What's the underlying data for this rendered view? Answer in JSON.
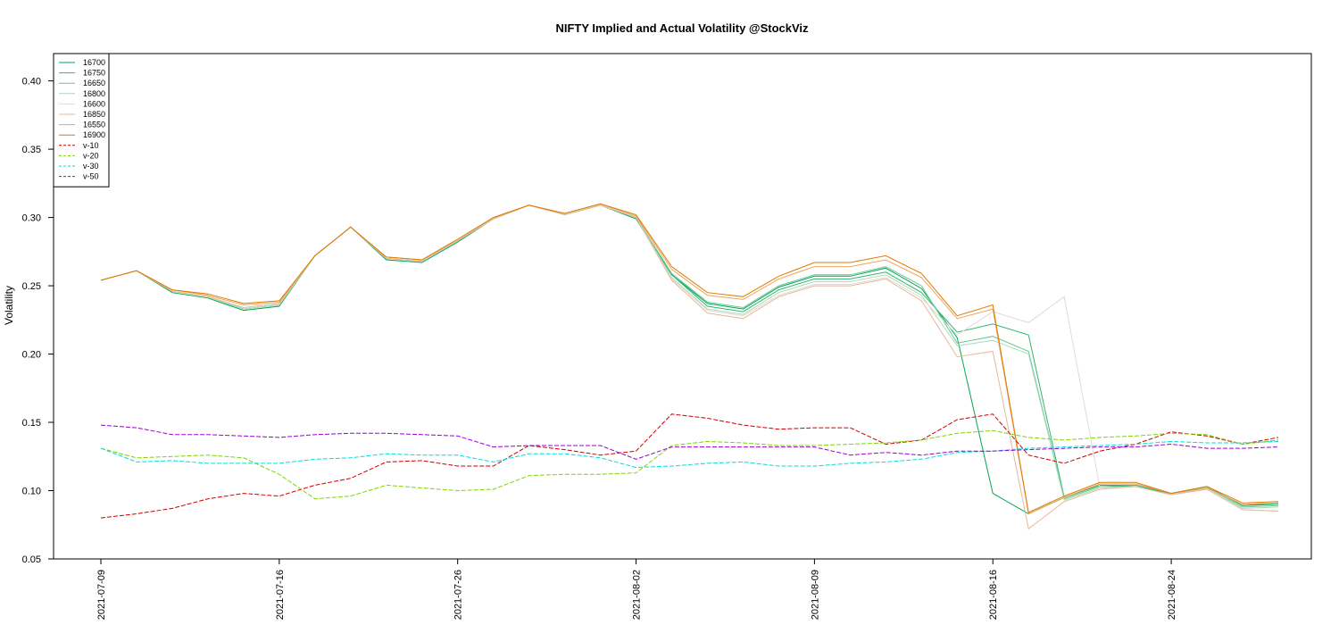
{
  "chart_data": {
    "type": "line",
    "title": "NIFTY Implied and Actual Volatility @StockViz",
    "ylabel": "Volatility",
    "xlabel": "",
    "ylim": [
      0.05,
      0.42
    ],
    "yticks": [
      0.05,
      0.1,
      0.15,
      0.2,
      0.25,
      0.3,
      0.35,
      0.4
    ],
    "ytick_labels": [
      "0.05",
      "0.10",
      "0.15",
      "0.20",
      "0.25",
      "0.30",
      "0.35",
      "0.40"
    ],
    "xtick_labels": [
      {
        "index": 0,
        "label": "2021-07-09"
      },
      {
        "index": 5,
        "label": "2021-07-16"
      },
      {
        "index": 10,
        "label": "2021-07-26"
      },
      {
        "index": 15,
        "label": "2021-08-02"
      },
      {
        "index": 20,
        "label": "2021-08-09"
      },
      {
        "index": 25,
        "label": "2021-08-16"
      },
      {
        "index": 30,
        "label": "2021-08-24"
      }
    ],
    "x_count": 34,
    "grid": false,
    "legend_position": "top-left",
    "series": [
      {
        "name": "16700",
        "color": "#00a651",
        "dash": "solid",
        "values": [
          0.254,
          0.261,
          0.245,
          0.241,
          0.232,
          0.235,
          0.272,
          0.293,
          0.269,
          0.267,
          0.282,
          0.299,
          0.309,
          0.302,
          0.309,
          0.299,
          0.258,
          0.237,
          0.233,
          0.249,
          0.257,
          0.257,
          0.263,
          0.248,
          0.212,
          0.098,
          0.083,
          0.095,
          0.104,
          0.103,
          0.098,
          0.103,
          0.089,
          0.091
        ]
      },
      {
        "name": "16750",
        "color": "#33b56d",
        "dash": "solid",
        "values": [
          0.254,
          0.261,
          0.246,
          0.242,
          0.233,
          0.236,
          0.272,
          0.293,
          0.27,
          0.268,
          0.283,
          0.299,
          0.309,
          0.302,
          0.309,
          0.3,
          0.258,
          0.235,
          0.231,
          0.247,
          0.255,
          0.255,
          0.26,
          0.245,
          0.216,
          0.222,
          0.214,
          0.095,
          0.104,
          0.104,
          0.098,
          0.103,
          0.089,
          0.09
        ]
      },
      {
        "name": "16650",
        "color": "#66c893",
        "dash": "solid",
        "values": [
          0.254,
          0.261,
          0.246,
          0.242,
          0.233,
          0.236,
          0.272,
          0.293,
          0.27,
          0.268,
          0.283,
          0.299,
          0.309,
          0.302,
          0.309,
          0.3,
          0.259,
          0.238,
          0.234,
          0.25,
          0.258,
          0.258,
          0.264,
          0.25,
          0.208,
          0.213,
          0.202,
          0.094,
          0.103,
          0.103,
          0.097,
          0.102,
          0.088,
          0.089
        ]
      },
      {
        "name": "16800",
        "color": "#a9dcc0",
        "dash": "solid",
        "values": [
          0.254,
          0.261,
          0.246,
          0.242,
          0.233,
          0.236,
          0.272,
          0.293,
          0.27,
          0.268,
          0.283,
          0.299,
          0.309,
          0.302,
          0.309,
          0.3,
          0.256,
          0.233,
          0.229,
          0.245,
          0.253,
          0.253,
          0.258,
          0.243,
          0.206,
          0.21,
          0.2,
          0.093,
          0.102,
          0.103,
          0.097,
          0.102,
          0.087,
          0.088
        ]
      },
      {
        "name": "16600",
        "color": "#e2d9d2",
        "dash": "solid",
        "values": [
          0.254,
          0.261,
          0.246,
          0.242,
          0.234,
          0.237,
          0.272,
          0.293,
          0.27,
          0.268,
          0.283,
          0.299,
          0.309,
          0.302,
          0.309,
          0.3,
          0.255,
          0.232,
          0.228,
          0.243,
          0.251,
          0.251,
          0.256,
          0.241,
          0.214,
          0.231,
          0.223,
          0.242,
          0.102,
          0.103,
          0.097,
          0.101,
          0.086,
          0.085
        ]
      },
      {
        "name": "16850",
        "color": "#e6b89a",
        "dash": "solid",
        "values": [
          0.254,
          0.261,
          0.246,
          0.242,
          0.234,
          0.237,
          0.272,
          0.293,
          0.27,
          0.268,
          0.283,
          0.299,
          0.309,
          0.302,
          0.309,
          0.3,
          0.254,
          0.23,
          0.226,
          0.242,
          0.25,
          0.25,
          0.255,
          0.239,
          0.198,
          0.202,
          0.072,
          0.092,
          0.101,
          0.103,
          0.097,
          0.101,
          0.086,
          0.085
        ]
      },
      {
        "name": "16550",
        "color": "#f0a35a",
        "dash": "solid",
        "values": [
          0.254,
          0.261,
          0.247,
          0.243,
          0.236,
          0.238,
          0.272,
          0.293,
          0.271,
          0.269,
          0.284,
          0.3,
          0.309,
          0.303,
          0.31,
          0.301,
          0.262,
          0.243,
          0.24,
          0.255,
          0.264,
          0.264,
          0.269,
          0.256,
          0.226,
          0.233,
          0.083,
          0.095,
          0.105,
          0.105,
          0.098,
          0.102,
          0.09,
          0.091
        ]
      },
      {
        "name": "16900",
        "color": "#e07b00",
        "dash": "solid",
        "values": [
          0.254,
          0.261,
          0.247,
          0.244,
          0.237,
          0.239,
          0.272,
          0.293,
          0.271,
          0.269,
          0.284,
          0.3,
          0.309,
          0.303,
          0.31,
          0.302,
          0.264,
          0.245,
          0.242,
          0.257,
          0.267,
          0.267,
          0.272,
          0.259,
          0.228,
          0.236,
          0.084,
          0.096,
          0.106,
          0.106,
          0.098,
          0.103,
          0.091,
          0.092
        ]
      },
      {
        "name": "v-10",
        "color": "#cc0000",
        "dash": "dashed",
        "values": [
          0.08,
          0.083,
          0.087,
          0.094,
          0.098,
          0.096,
          0.104,
          0.109,
          0.121,
          0.122,
          0.118,
          0.118,
          0.133,
          0.13,
          0.126,
          0.129,
          0.156,
          0.153,
          0.148,
          0.145,
          0.146,
          0.146,
          0.134,
          0.137,
          0.152,
          0.156,
          0.126,
          0.12,
          0.129,
          0.134,
          0.143,
          0.14,
          0.134,
          0.139
        ]
      },
      {
        "name": "v-20",
        "color": "#7fd300",
        "dash": "dashed",
        "values": [
          0.131,
          0.124,
          0.125,
          0.126,
          0.124,
          0.112,
          0.094,
          0.096,
          0.104,
          0.102,
          0.1,
          0.101,
          0.111,
          0.112,
          0.112,
          0.113,
          0.133,
          0.136,
          0.135,
          0.133,
          0.133,
          0.134,
          0.135,
          0.137,
          0.142,
          0.144,
          0.139,
          0.137,
          0.139,
          0.14,
          0.142,
          0.141,
          0.134,
          0.137
        ]
      },
      {
        "name": "v-30",
        "color": "#00dede",
        "dash": "dashed",
        "values": [
          0.131,
          0.121,
          0.122,
          0.12,
          0.12,
          0.12,
          0.123,
          0.124,
          0.127,
          0.126,
          0.126,
          0.121,
          0.127,
          0.127,
          0.124,
          0.117,
          0.118,
          0.12,
          0.121,
          0.118,
          0.118,
          0.12,
          0.121,
          0.123,
          0.128,
          0.129,
          0.131,
          0.132,
          0.133,
          0.134,
          0.136,
          0.135,
          0.135,
          0.136
        ]
      },
      {
        "name": "v-50",
        "color": "#9a00d6",
        "dash": "dashed",
        "values": [
          0.148,
          0.146,
          0.141,
          0.141,
          0.14,
          0.139,
          0.141,
          0.142,
          0.142,
          0.141,
          0.14,
          0.132,
          0.133,
          0.133,
          0.133,
          0.123,
          0.132,
          0.132,
          0.132,
          0.132,
          0.132,
          0.126,
          0.128,
          0.126,
          0.129,
          0.129,
          0.13,
          0.131,
          0.132,
          0.132,
          0.134,
          0.131,
          0.131,
          0.132
        ]
      }
    ]
  }
}
